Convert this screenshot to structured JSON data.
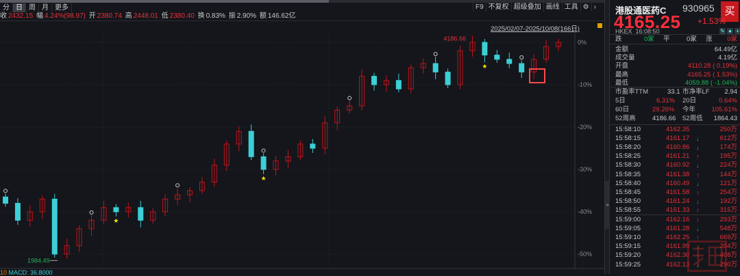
{
  "toolbar": {
    "tabs": [
      "分",
      "日",
      "周",
      "月",
      "更多"
    ],
    "active_tab": "日",
    "tools": [
      "F9",
      "不复权",
      "超级叠加",
      "画线",
      "工具"
    ]
  },
  "info": {
    "close_label": "收",
    "close": "2432.15",
    "amp_label": "幅",
    "amp": "4.24%(98.97)",
    "open_label": "开",
    "open": "2380.74",
    "high_label": "高",
    "high": "2448.01",
    "low_label": "低",
    "low": "2380.40",
    "turn_label": "换",
    "turn": "0.83%",
    "swing_label": "振",
    "swing": "2.90%",
    "amount_label": "额",
    "amount": "146.62亿"
  },
  "date_range": "2025/02/07-2025/10/08(166日)",
  "macd": {
    "period": "10",
    "label": "MACD: 36.8000"
  },
  "colors": {
    "up": "#c0141c",
    "down": "#3ccfd6",
    "accent_red": "#ff2d3a",
    "green": "#1fb45a",
    "star": "#ffe600",
    "highlight_box": "#ff4a4a"
  },
  "chart_data": {
    "type": "candlestick",
    "y_axis_ticks": [
      "0%",
      "-10%",
      "-20%",
      "-30%",
      "-40%",
      "-50%"
    ],
    "ylim": [
      -52,
      2
    ],
    "grid": true,
    "close_pct": [
      -38,
      -42,
      -40,
      -37,
      -50,
      -48,
      -44,
      -42,
      -39,
      -40,
      -39,
      -42,
      -40,
      -37,
      -36,
      -35,
      -33,
      -29,
      -24,
      -21,
      -27,
      -30,
      -28,
      -27,
      -24,
      -25,
      -19,
      -16,
      -15,
      -8,
      -10,
      -9,
      -11,
      -6,
      -5,
      -7,
      -10,
      -2,
      0,
      -3,
      -4,
      -5,
      -7,
      -4,
      -1,
      0
    ],
    "annotations": {
      "high_label": "4186.66",
      "low_label": "1984.49"
    }
  },
  "panel": {
    "name": "港股通医药C",
    "code": "930965",
    "buy": "买",
    "price": "4165.25",
    "change": "+1.53%",
    "exchange": "HKEX",
    "time": "16:08:50",
    "breadth": {
      "fall_label": "跌",
      "fall": "0家",
      "flat_label": "平",
      "flat": "0家",
      "rise_label": "涨",
      "rise": "0家"
    },
    "stats": [
      {
        "label": "金额",
        "value": "64.49亿",
        "c": "w"
      },
      {
        "label": "成交量",
        "value": "4.19亿",
        "c": "w"
      },
      {
        "label": "开盘",
        "value": "4110.28 (  0.19%)",
        "c": "r"
      },
      {
        "label": "最高",
        "value": "4165.25 (  1.53%)",
        "c": "r"
      },
      {
        "label": "最低",
        "value": "4059.88 ( -1.04%)",
        "c": "g"
      }
    ],
    "pe_label": "市盈率TTM",
    "pe": "33.1",
    "pb_label": "市净率LF",
    "pb": "2.94",
    "d5_label": "5日",
    "d5": "6.31%",
    "d20_label": "20日",
    "d20": "0.64%",
    "d60_label": "60日",
    "d60": "29.26%",
    "ytd_label": "今年",
    "ytd": "105.61%",
    "h52_label": "52周高",
    "h52": "4186.66",
    "l52_label": "52周低",
    "l52": "1864.43",
    "ticks": [
      {
        "time": "15:58:10",
        "price": "4162.35",
        "dir": "",
        "vol": "250万"
      },
      {
        "time": "15:58:15",
        "price": "4161.17",
        "dir": "down",
        "vol": "612万"
      },
      {
        "time": "15:58:20",
        "price": "4160.86",
        "dir": "down",
        "vol": "174万"
      },
      {
        "time": "15:58:25",
        "price": "4161.21",
        "dir": "up",
        "vol": "195万"
      },
      {
        "time": "15:58:30",
        "price": "4160.92",
        "dir": "down",
        "vol": "224万"
      },
      {
        "time": "15:58:35",
        "price": "4161.38",
        "dir": "up",
        "vol": "144万"
      },
      {
        "time": "15:58:40",
        "price": "4160.49",
        "dir": "down",
        "vol": "121万"
      },
      {
        "time": "15:58:45",
        "price": "4161.58",
        "dir": "up",
        "vol": "254万"
      },
      {
        "time": "15:58:50",
        "price": "4161.24",
        "dir": "down",
        "vol": "192万"
      },
      {
        "time": "15:58:55",
        "price": "4161.33",
        "dir": "up",
        "vol": "315万"
      },
      {
        "time": "15:59:00",
        "price": "4162.16",
        "dir": "up",
        "vol": "293万"
      },
      {
        "time": "15:59:05",
        "price": "4161.28",
        "dir": "down",
        "vol": "548万"
      },
      {
        "time": "15:59:10",
        "price": "4162.25",
        "dir": "up",
        "vol": "669万"
      },
      {
        "time": "15:59:15",
        "price": "4161.99",
        "dir": "down",
        "vol": "204万"
      },
      {
        "time": "15:59:20",
        "price": "4162.30",
        "dir": "up",
        "vol": "408万"
      },
      {
        "time": "15:59:25",
        "price": "4162.13",
        "dir": "down",
        "vol": "290万"
      }
    ]
  }
}
